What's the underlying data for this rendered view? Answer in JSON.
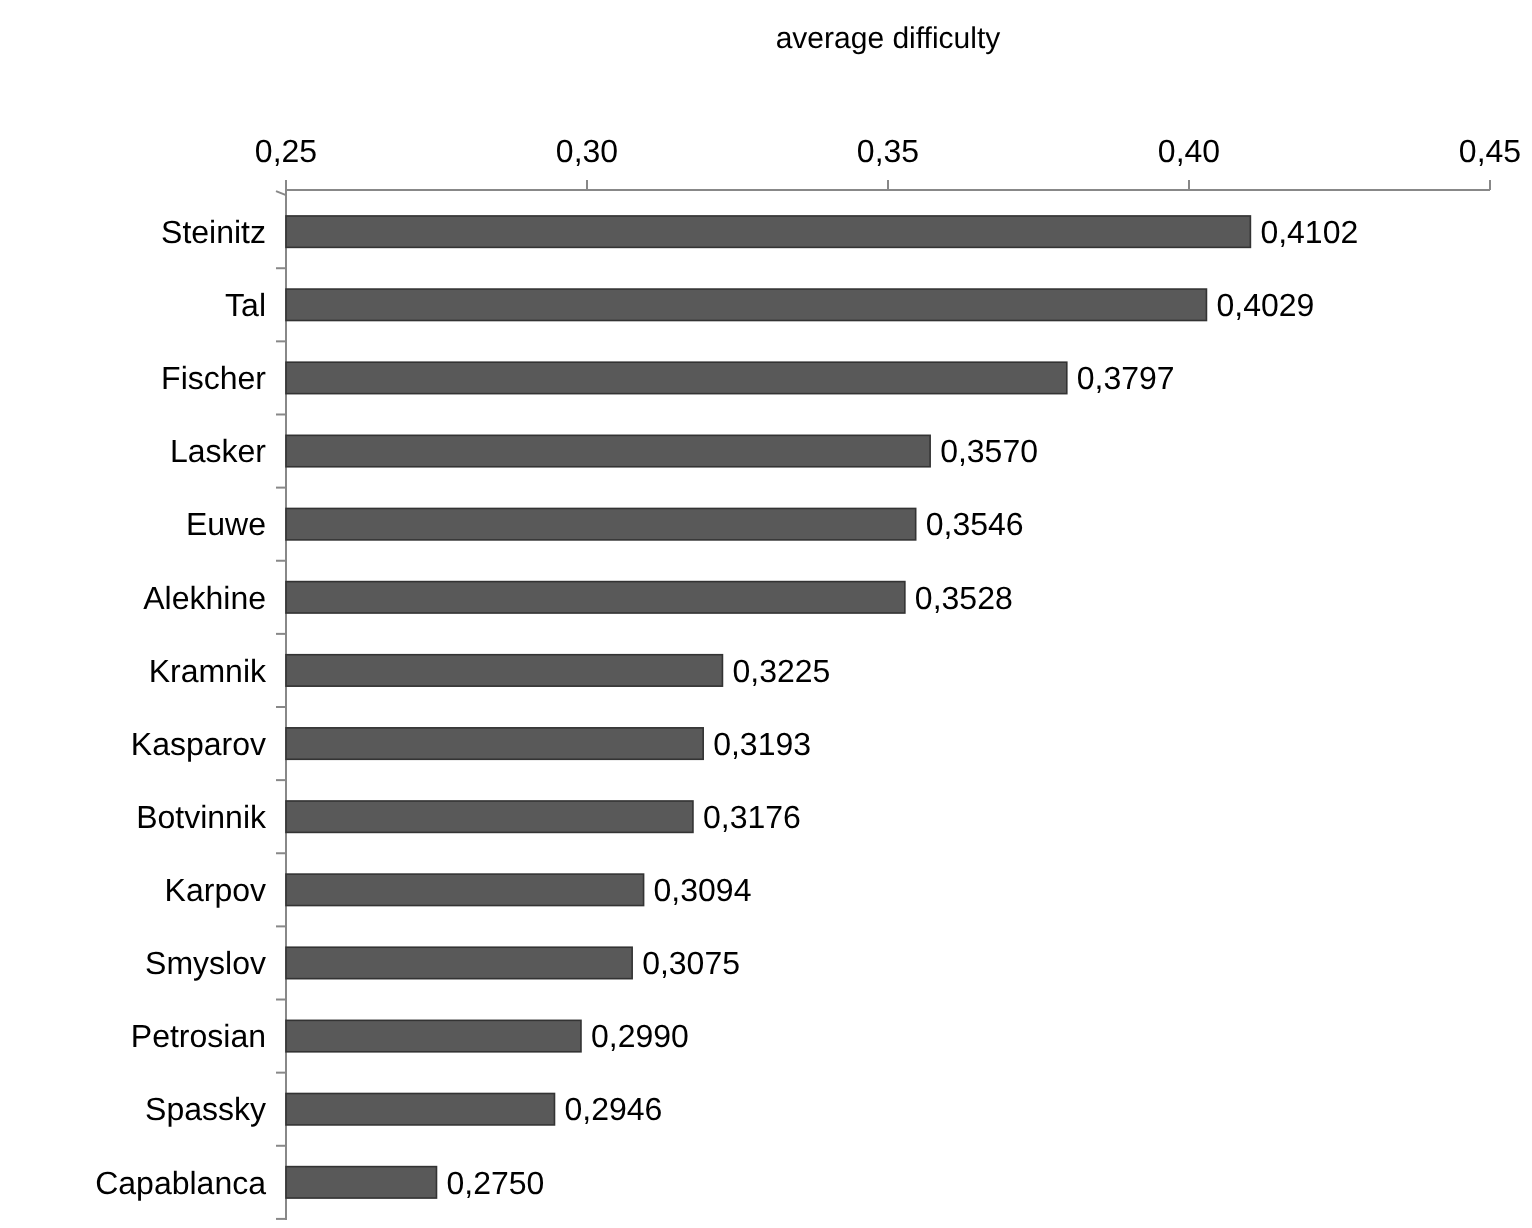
{
  "chart_data": {
    "type": "bar",
    "orientation": "horizontal",
    "xlabel": "average difficulty",
    "categories": [
      "Steinitz",
      "Tal",
      "Fischer",
      "Lasker",
      "Euwe",
      "Alekhine",
      "Kramnik",
      "Kasparov",
      "Botvinnik",
      "Karpov",
      "Smyslov",
      "Petrosian",
      "Spassky",
      "Capablanca"
    ],
    "values": [
      0.4102,
      0.4029,
      0.3797,
      0.357,
      0.3546,
      0.3528,
      0.3225,
      0.3193,
      0.3176,
      0.3094,
      0.3075,
      0.299,
      0.2946,
      0.275
    ],
    "value_labels": [
      "0,4102",
      "0,4029",
      "0,3797",
      "0,3570",
      "0,3546",
      "0,3528",
      "0,3225",
      "0,3193",
      "0,3176",
      "0,3094",
      "0,3075",
      "0,2990",
      "0,2946",
      "0,2750"
    ],
    "color": "#595959",
    "xlim": [
      0.25,
      0.45
    ],
    "xticks": [
      {
        "value": 0.25,
        "label": "0,25"
      },
      {
        "value": 0.3,
        "label": "0,30"
      },
      {
        "value": 0.35,
        "label": "0,35"
      },
      {
        "value": 0.4,
        "label": "0,40"
      },
      {
        "value": 0.45,
        "label": "0,45"
      }
    ],
    "grid": false
  }
}
